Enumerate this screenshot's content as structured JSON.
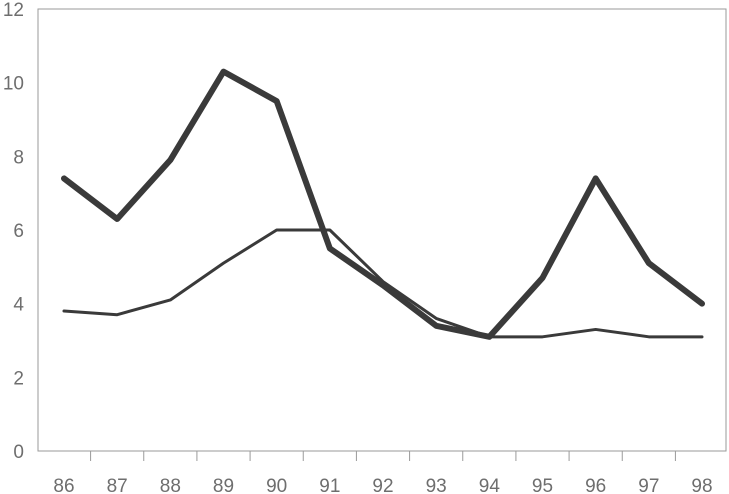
{
  "chart_data": {
    "type": "line",
    "title": "",
    "xlabel": "",
    "ylabel": "",
    "categories": [
      "86",
      "87",
      "88",
      "89",
      "90",
      "91",
      "92",
      "93",
      "94",
      "95",
      "96",
      "97",
      "98"
    ],
    "y_ticks": [
      "0",
      "2",
      "4",
      "6",
      "8",
      "10",
      "12"
    ],
    "ylim": [
      0,
      12
    ],
    "grid": false,
    "legend": "none",
    "series": [
      {
        "color": "#3a3a3a",
        "line_weight": "thick",
        "values": [
          7.4,
          6.3,
          7.9,
          10.3,
          9.5,
          5.5,
          4.5,
          3.4,
          3.1,
          4.7,
          7.4,
          5.1,
          4.0
        ]
      },
      {
        "color": "#3a3a3a",
        "line_weight": "thin",
        "values": [
          3.8,
          3.7,
          4.1,
          5.1,
          6.0,
          6.0,
          4.6,
          3.6,
          3.1,
          3.1,
          3.3,
          3.1,
          3.1
        ]
      }
    ]
  }
}
